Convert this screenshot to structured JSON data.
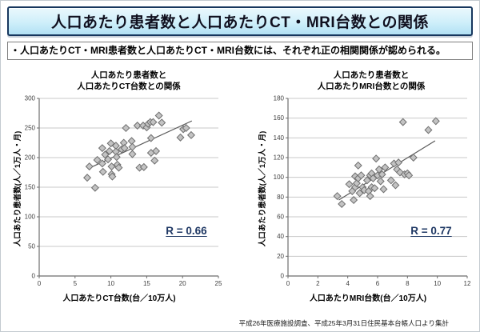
{
  "page": {
    "title": "人口あたり患者数と人口あたりCT・MRI台数との関係",
    "summary": "・人口あたりCT・MRI患者数と人口あたりCT・MRI台数には、それぞれ正の相関関係が認められる。",
    "source": "平成26年医療施設調査、平成25年3月31日住民基本台帳人口より集計"
  },
  "colors": {
    "title_border": "#17375e",
    "title_bg_top": "#eaf8fd",
    "title_bg_bottom": "#b2e1f4",
    "grid": "#c8c8c8",
    "axis": "#6e6e6e",
    "marker_fill": "#c3c3c3",
    "marker_stroke": "#6e6e6e",
    "trend": "#595959",
    "tick_text": "#404040",
    "r_label": "#1f3864"
  },
  "chart_data": [
    {
      "type": "scatter",
      "title_line1": "人口あたり患者数と",
      "title_line2": "人口あたりCT台数との関係",
      "xlabel": "人口あたりCT台数(台／10万人)",
      "ylabel": "人口あたり患者数(人／1万人・月)",
      "r_label": "R = 0.66",
      "xlim": [
        0,
        25
      ],
      "ylim": [
        0,
        300
      ],
      "xticks": [
        0,
        5,
        10,
        15,
        20,
        25
      ],
      "yticks": [
        0,
        50,
        100,
        150,
        200,
        250,
        300
      ],
      "points": [
        [
          6.7,
          166
        ],
        [
          7.0,
          185
        ],
        [
          7.8,
          149
        ],
        [
          8.1,
          196
        ],
        [
          8.8,
          216
        ],
        [
          8.8,
          190
        ],
        [
          8.9,
          176
        ],
        [
          9.2,
          205
        ],
        [
          9.6,
          197
        ],
        [
          9.8,
          211
        ],
        [
          10.0,
          224
        ],
        [
          10.1,
          185
        ],
        [
          10.1,
          172
        ],
        [
          10.2,
          168
        ],
        [
          10.7,
          220
        ],
        [
          10.7,
          210
        ],
        [
          10.8,
          201
        ],
        [
          10.9,
          188
        ],
        [
          11.1,
          183
        ],
        [
          11.5,
          214
        ],
        [
          11.8,
          225
        ],
        [
          11.9,
          216
        ],
        [
          12.1,
          250
        ],
        [
          12.9,
          228
        ],
        [
          13.0,
          218
        ],
        [
          13.0,
          206
        ],
        [
          13.7,
          254
        ],
        [
          14.0,
          183
        ],
        [
          14.6,
          184
        ],
        [
          14.5,
          254
        ],
        [
          15.0,
          251
        ],
        [
          15.2,
          257
        ],
        [
          15.5,
          260
        ],
        [
          15.6,
          233
        ],
        [
          15.6,
          208
        ],
        [
          15.9,
          260
        ],
        [
          16.1,
          195
        ],
        [
          16.3,
          211
        ],
        [
          16.7,
          271
        ],
        [
          17.1,
          259
        ],
        [
          19.7,
          234
        ],
        [
          20.1,
          248
        ],
        [
          20.5,
          250
        ],
        [
          21.2,
          238
        ]
      ],
      "trend": {
        "x1": 7.3,
        "y1": 184,
        "x2": 21.3,
        "y2": 262
      }
    },
    {
      "type": "scatter",
      "title_line1": "人口あたり患者数と",
      "title_line2": "人口あたりMRI台数との関係",
      "xlabel": "人口あたりMRI台数(台／10万人)",
      "ylabel": "人口あたり患者数(人／1万人・月)",
      "r_label": "R = 0.77",
      "xlim": [
        0,
        12
      ],
      "ylim": [
        0,
        180
      ],
      "xticks": [
        0,
        2,
        4,
        6,
        8,
        10,
        12
      ],
      "yticks": [
        0,
        20,
        40,
        60,
        80,
        100,
        120,
        140,
        160,
        180
      ],
      "points": [
        [
          3.3,
          81
        ],
        [
          3.6,
          73
        ],
        [
          4.1,
          93
        ],
        [
          4.3,
          86
        ],
        [
          4.4,
          77
        ],
        [
          4.5,
          90
        ],
        [
          4.5,
          101
        ],
        [
          4.6,
          94
        ],
        [
          4.7,
          112
        ],
        [
          4.7,
          99
        ],
        [
          4.8,
          84
        ],
        [
          4.9,
          102
        ],
        [
          5.0,
          90
        ],
        [
          5.1,
          87
        ],
        [
          5.3,
          97
        ],
        [
          5.4,
          86
        ],
        [
          5.5,
          102
        ],
        [
          5.5,
          81
        ],
        [
          5.6,
          104
        ],
        [
          5.6,
          90
        ],
        [
          5.7,
          99
        ],
        [
          5.8,
          89
        ],
        [
          5.9,
          119
        ],
        [
          6.0,
          102
        ],
        [
          6.1,
          108
        ],
        [
          6.2,
          96
        ],
        [
          6.3,
          103
        ],
        [
          6.4,
          88
        ],
        [
          6.5,
          110
        ],
        [
          6.9,
          97
        ],
        [
          7.1,
          114
        ],
        [
          7.2,
          92
        ],
        [
          7.3,
          108
        ],
        [
          7.4,
          115
        ],
        [
          7.5,
          105
        ],
        [
          7.7,
          156
        ],
        [
          7.8,
          103
        ],
        [
          8.0,
          104
        ],
        [
          8.1,
          102
        ],
        [
          8.4,
          120
        ],
        [
          9.4,
          148
        ],
        [
          9.9,
          157
        ]
      ],
      "trend": {
        "x1": 3.4,
        "y1": 77,
        "x2": 9.85,
        "y2": 137
      }
    }
  ]
}
